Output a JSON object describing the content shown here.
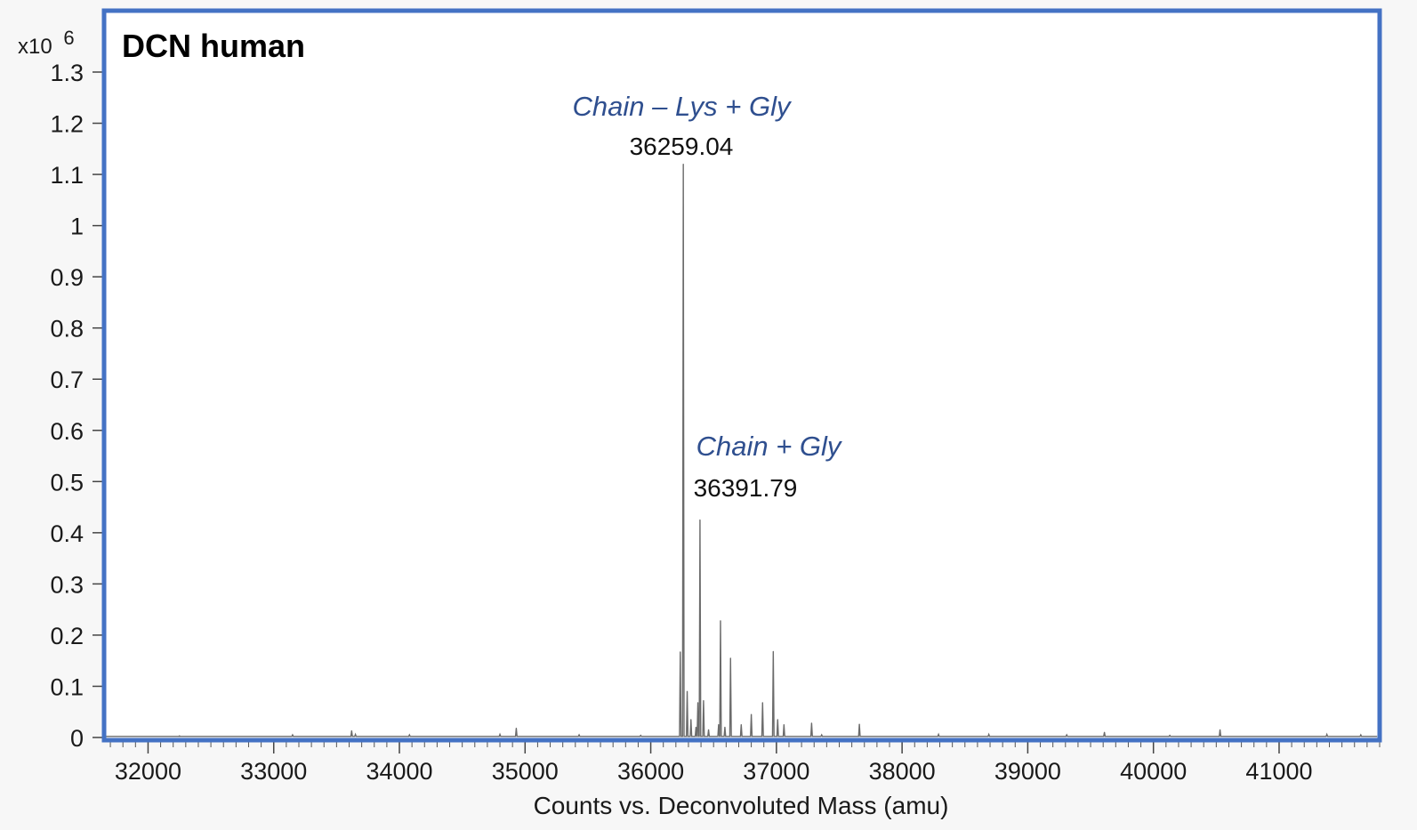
{
  "chart_data": {
    "type": "line",
    "title": "DCN human",
    "xlabel": "Counts vs. Deconvoluted Mass (amu)",
    "ylabel": "",
    "y_multiplier": {
      "base": "x10",
      "exp": "6"
    },
    "xlim": [
      31650,
      41800
    ],
    "ylim": [
      0,
      1.3
    ],
    "xticks": [
      32000,
      33000,
      34000,
      35000,
      36000,
      37000,
      38000,
      39000,
      40000,
      41000
    ],
    "yticks": [
      0,
      0.1,
      0.2,
      0.3,
      0.4,
      0.5,
      0.6,
      0.7,
      0.8,
      0.9,
      1,
      1.1,
      1.2,
      1.3
    ],
    "grid": false,
    "series": [
      {
        "values_label": "Counts (x10^6)",
        "peaks": [
          {
            "x": 32250,
            "y": 0.003
          },
          {
            "x": 33150,
            "y": 0.005
          },
          {
            "x": 33620,
            "y": 0.013
          },
          {
            "x": 33650,
            "y": 0.006
          },
          {
            "x": 34080,
            "y": 0.005
          },
          {
            "x": 34800,
            "y": 0.006
          },
          {
            "x": 34930,
            "y": 0.018
          },
          {
            "x": 35430,
            "y": 0.005
          },
          {
            "x": 35920,
            "y": 0.004
          },
          {
            "x": 36235,
            "y": 0.167
          },
          {
            "x": 36259.04,
            "y": 1.12
          },
          {
            "x": 36290,
            "y": 0.09
          },
          {
            "x": 36320,
            "y": 0.035
          },
          {
            "x": 36360,
            "y": 0.02
          },
          {
            "x": 36375,
            "y": 0.068
          },
          {
            "x": 36391.79,
            "y": 0.425
          },
          {
            "x": 36420,
            "y": 0.072
          },
          {
            "x": 36460,
            "y": 0.015
          },
          {
            "x": 36540,
            "y": 0.025
          },
          {
            "x": 36555,
            "y": 0.228
          },
          {
            "x": 36590,
            "y": 0.02
          },
          {
            "x": 36635,
            "y": 0.155
          },
          {
            "x": 36720,
            "y": 0.025
          },
          {
            "x": 36800,
            "y": 0.045
          },
          {
            "x": 36890,
            "y": 0.068
          },
          {
            "x": 36975,
            "y": 0.168
          },
          {
            "x": 37010,
            "y": 0.035
          },
          {
            "x": 37060,
            "y": 0.025
          },
          {
            "x": 37280,
            "y": 0.028
          },
          {
            "x": 37360,
            "y": 0.005
          },
          {
            "x": 37660,
            "y": 0.026
          },
          {
            "x": 38290,
            "y": 0.006
          },
          {
            "x": 38690,
            "y": 0.006
          },
          {
            "x": 39310,
            "y": 0.005
          },
          {
            "x": 39610,
            "y": 0.01
          },
          {
            "x": 40130,
            "y": 0.004
          },
          {
            "x": 40530,
            "y": 0.015
          },
          {
            "x": 41380,
            "y": 0.006
          },
          {
            "x": 41650,
            "y": 0.005
          }
        ]
      }
    ],
    "annotations": [
      {
        "name": "Chain – Lys + Gly",
        "value": "36259.04",
        "x": 36259.04
      },
      {
        "name": "Chain + Gly",
        "value": "36391.79",
        "x": 36391.79
      }
    ]
  },
  "colors": {
    "frame": "#4472c4",
    "trace": "#6b6b6b",
    "annotation": "#2f4f8f",
    "background": "#f7f7f7",
    "plot_background": "#ffffff"
  }
}
